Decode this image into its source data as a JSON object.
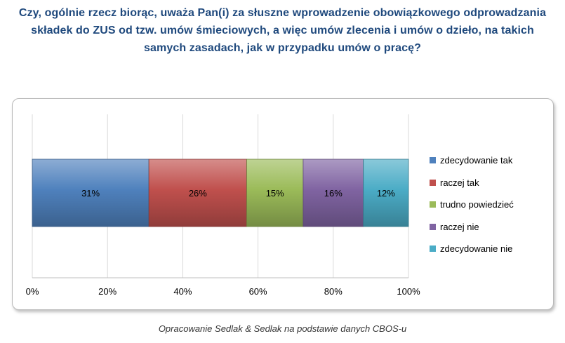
{
  "title": "Czy, ogólnie rzecz biorąc, uważa Pan(i) za słuszne wprowadzenie obowiązkowego odprowadzania składek do ZUS od tzw. umów śmieciowych, a więc umów zlecenia i umów o dzieło, na takich samych zasadach, jak w przypadku umów o pracę?",
  "source": "Opracowanie Sedlak & Sedlak na podstawie danych CBOS-u",
  "chart_data": {
    "type": "bar",
    "orientation": "horizontal-stacked-100",
    "categories": [
      ""
    ],
    "series": [
      {
        "name": "zdecydowanie tak",
        "values": [
          31
        ],
        "label": "31%",
        "color": "#4f81bd"
      },
      {
        "name": "raczej tak",
        "values": [
          26
        ],
        "label": "26%",
        "color": "#c0504d"
      },
      {
        "name": "trudno powiedzieć",
        "values": [
          15
        ],
        "label": "15%",
        "color": "#9bbb59"
      },
      {
        "name": "raczej nie",
        "values": [
          16
        ],
        "label": "16%",
        "color": "#8064a2"
      },
      {
        "name": "zdecydowanie nie",
        "values": [
          12
        ],
        "label": "12%",
        "color": "#4bacc6"
      }
    ],
    "xlim": [
      0,
      100
    ],
    "xticks": [
      "0%",
      "20%",
      "40%",
      "60%",
      "80%",
      "100%"
    ],
    "grid": true,
    "legend": "right"
  }
}
